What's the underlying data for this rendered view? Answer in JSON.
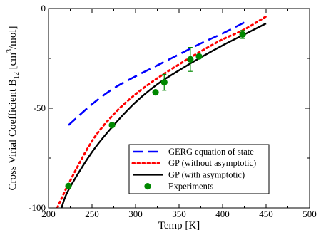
{
  "chart_data": {
    "type": "line",
    "xlabel": "Temp [K]",
    "ylabel_main": "Cross Virial Coefficient B",
    "ylabel_sub": "12",
    "ylabel_unit_open": " [cm",
    "ylabel_unit_sup": "3",
    "ylabel_unit_close": "/mol]",
    "xlim": [
      200,
      500
    ],
    "ylim": [
      -100,
      0
    ],
    "x_ticks": [
      200,
      250,
      300,
      350,
      400,
      450,
      500
    ],
    "y_ticks": [
      -100,
      -50,
      0
    ],
    "y_tick_labels": [
      "-100",
      "-50",
      "0"
    ],
    "grid": false,
    "legend_position": "bottom-right",
    "colors": {
      "gerg": "#0000ff",
      "gp_no_asym": "#ff0000",
      "gp_asym": "#000000",
      "experiments": "#008800"
    },
    "series": [
      {
        "name": "GERG equation of state",
        "style": "dashed",
        "x": [
          223,
          250,
          275,
          300,
          325,
          350,
          375,
          400,
          425
        ],
        "y": [
          -58.5,
          -48,
          -40,
          -34,
          -28.5,
          -23,
          -17.5,
          -12.5,
          -7
        ]
      },
      {
        "name": "GP (without asymptotic)",
        "style": "dotted",
        "x": [
          210,
          223,
          250,
          275,
          300,
          325,
          350,
          375,
          400,
          425,
          450
        ],
        "y": [
          -100,
          -88,
          -66.5,
          -53,
          -43,
          -35,
          -28,
          -21.5,
          -15.5,
          -10.5,
          -4
        ]
      },
      {
        "name": "GP (with asymptotic)",
        "style": "solid",
        "x": [
          215,
          223,
          250,
          275,
          300,
          325,
          350,
          375,
          400,
          425,
          450
        ],
        "y": [
          -100,
          -91,
          -72,
          -58.5,
          -47,
          -38,
          -31,
          -24.5,
          -18.5,
          -13,
          -7.5
        ]
      }
    ],
    "experiments": {
      "name": "Experiments",
      "x": [
        223,
        273,
        323,
        333,
        363,
        373,
        423
      ],
      "y": [
        -89,
        -58.5,
        -42,
        -37,
        -25.5,
        -24,
        -13
      ],
      "err": [
        0,
        0,
        0,
        4,
        6,
        0,
        2
      ]
    }
  }
}
